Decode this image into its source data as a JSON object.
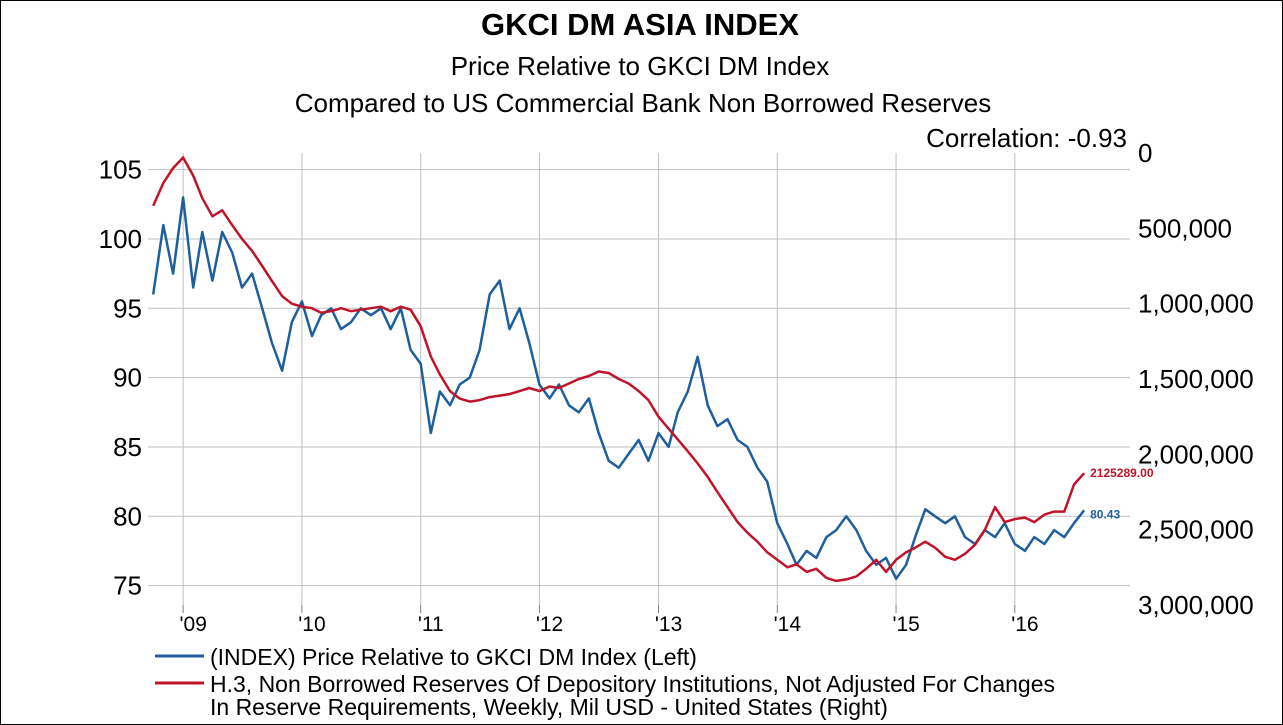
{
  "chart_data": {
    "type": "line",
    "title": "GKCI DM ASIA INDEX",
    "subtitle": "Price Relative to GKCI DM Index",
    "subtitle2": "Compared to US Commercial Bank Non Borrowed Reserves",
    "correlation_text": "Correlation: -0.93",
    "x_ticks": [
      "'09",
      "'10",
      "'11",
      "'12",
      "'13",
      "'14",
      "'15",
      "'16"
    ],
    "y_left_ticks": [
      "105",
      "100",
      "95",
      "90",
      "85",
      "80",
      "75"
    ],
    "y_left_range": [
      73.6,
      106.2
    ],
    "y_right_ticks": [
      "0",
      "500,000",
      "1,000,000",
      "1,500,000",
      "2,000,000",
      "2,500,000",
      "3,000,000"
    ],
    "y_right_range": [
      0,
      3000000
    ],
    "y_right_inverted": true,
    "grid": true,
    "legend_placement": "bottom",
    "series": [
      {
        "name": "(INDEX) Price Relative to GKCI DM Index  (Left)",
        "axis": "left",
        "color": "#1f5f9c",
        "last_label": "80.43",
        "points": [
          [
            "2008-10-01",
            96.0
          ],
          [
            "2008-11-01",
            101.0
          ],
          [
            "2008-12-01",
            97.5
          ],
          [
            "2009-01-01",
            103.0
          ],
          [
            "2009-02-01",
            96.5
          ],
          [
            "2009-03-01",
            100.5
          ],
          [
            "2009-04-01",
            97.0
          ],
          [
            "2009-05-01",
            100.5
          ],
          [
            "2009-06-01",
            99.0
          ],
          [
            "2009-07-01",
            96.5
          ],
          [
            "2009-08-01",
            97.5
          ],
          [
            "2009-09-01",
            95.0
          ],
          [
            "2009-10-01",
            92.5
          ],
          [
            "2009-11-01",
            90.5
          ],
          [
            "2009-12-01",
            94.0
          ],
          [
            "2010-01-01",
            95.5
          ],
          [
            "2010-02-01",
            93.0
          ],
          [
            "2010-03-01",
            94.5
          ],
          [
            "2010-04-01",
            95.0
          ],
          [
            "2010-05-01",
            93.5
          ],
          [
            "2010-06-01",
            94.0
          ],
          [
            "2010-07-01",
            95.0
          ],
          [
            "2010-08-01",
            94.5
          ],
          [
            "2010-09-01",
            95.0
          ],
          [
            "2010-10-01",
            93.5
          ],
          [
            "2010-11-01",
            95.0
          ],
          [
            "2010-12-01",
            92.0
          ],
          [
            "2011-01-01",
            91.0
          ],
          [
            "2011-02-01",
            86.0
          ],
          [
            "2011-03-01",
            89.0
          ],
          [
            "2011-04-01",
            88.0
          ],
          [
            "2011-05-01",
            89.5
          ],
          [
            "2011-06-01",
            90.0
          ],
          [
            "2011-07-01",
            92.0
          ],
          [
            "2011-08-01",
            96.0
          ],
          [
            "2011-09-01",
            97.0
          ],
          [
            "2011-10-01",
            93.5
          ],
          [
            "2011-11-01",
            95.0
          ],
          [
            "2011-12-01",
            92.5
          ],
          [
            "2012-01-01",
            89.5
          ],
          [
            "2012-02-01",
            88.5
          ],
          [
            "2012-03-01",
            89.5
          ],
          [
            "2012-04-01",
            88.0
          ],
          [
            "2012-05-01",
            87.5
          ],
          [
            "2012-06-01",
            88.5
          ],
          [
            "2012-07-01",
            86.0
          ],
          [
            "2012-08-01",
            84.0
          ],
          [
            "2012-09-01",
            83.5
          ],
          [
            "2012-10-01",
            84.5
          ],
          [
            "2012-11-01",
            85.5
          ],
          [
            "2012-12-01",
            84.0
          ],
          [
            "2013-01-01",
            86.0
          ],
          [
            "2013-02-01",
            85.0
          ],
          [
            "2013-03-01",
            87.5
          ],
          [
            "2013-04-01",
            89.0
          ],
          [
            "2013-05-01",
            91.5
          ],
          [
            "2013-06-01",
            88.0
          ],
          [
            "2013-07-01",
            86.5
          ],
          [
            "2013-08-01",
            87.0
          ],
          [
            "2013-09-01",
            85.5
          ],
          [
            "2013-10-01",
            85.0
          ],
          [
            "2013-11-01",
            83.5
          ],
          [
            "2013-12-01",
            82.5
          ],
          [
            "2014-01-01",
            79.5
          ],
          [
            "2014-02-01",
            78.0
          ],
          [
            "2014-03-01",
            76.5
          ],
          [
            "2014-04-01",
            77.5
          ],
          [
            "2014-05-01",
            77.0
          ],
          [
            "2014-06-01",
            78.5
          ],
          [
            "2014-07-01",
            79.0
          ],
          [
            "2014-08-01",
            80.0
          ],
          [
            "2014-09-01",
            79.0
          ],
          [
            "2014-10-01",
            77.5
          ],
          [
            "2014-11-01",
            76.5
          ],
          [
            "2014-12-01",
            77.0
          ],
          [
            "2015-01-01",
            75.5
          ],
          [
            "2015-02-01",
            76.5
          ],
          [
            "2015-03-01",
            78.5
          ],
          [
            "2015-04-01",
            80.5
          ],
          [
            "2015-05-01",
            80.0
          ],
          [
            "2015-06-01",
            79.5
          ],
          [
            "2015-07-01",
            80.0
          ],
          [
            "2015-08-01",
            78.5
          ],
          [
            "2015-09-01",
            78.0
          ],
          [
            "2015-10-01",
            79.0
          ],
          [
            "2015-11-01",
            78.5
          ],
          [
            "2015-12-01",
            79.5
          ],
          [
            "2016-01-01",
            78.0
          ],
          [
            "2016-02-01",
            77.5
          ],
          [
            "2016-03-01",
            78.5
          ],
          [
            "2016-04-01",
            78.0
          ],
          [
            "2016-05-01",
            79.0
          ],
          [
            "2016-06-01",
            78.5
          ],
          [
            "2016-07-01",
            79.5
          ],
          [
            "2016-08-01",
            80.43
          ]
        ]
      },
      {
        "name": "H.3, Non Borrowed Reserves Of Depository Institutions, Not Adjusted For Changes In Reserve Requirements, Weekly, Mil USD - United States  (Right)",
        "name_line1": "H.3, Non Borrowed Reserves Of Depository Institutions, Not Adjusted For Changes",
        "name_line2": "In Reserve Requirements, Weekly, Mil USD - United States  (Right)",
        "axis": "right",
        "color": "#c0142a",
        "last_label": "2125289.00",
        "points": [
          [
            "2008-10-01",
            350000
          ],
          [
            "2008-11-01",
            200000
          ],
          [
            "2008-12-01",
            100000
          ],
          [
            "2009-01-01",
            30000
          ],
          [
            "2009-02-01",
            150000
          ],
          [
            "2009-03-01",
            300000
          ],
          [
            "2009-04-01",
            420000
          ],
          [
            "2009-05-01",
            380000
          ],
          [
            "2009-06-01",
            480000
          ],
          [
            "2009-07-01",
            570000
          ],
          [
            "2009-08-01",
            650000
          ],
          [
            "2009-09-01",
            750000
          ],
          [
            "2009-10-01",
            850000
          ],
          [
            "2009-11-01",
            950000
          ],
          [
            "2009-12-01",
            1000000
          ],
          [
            "2010-01-01",
            1020000
          ],
          [
            "2010-02-01",
            1030000
          ],
          [
            "2010-03-01",
            1060000
          ],
          [
            "2010-04-01",
            1050000
          ],
          [
            "2010-05-01",
            1030000
          ],
          [
            "2010-06-01",
            1050000
          ],
          [
            "2010-07-01",
            1040000
          ],
          [
            "2010-08-01",
            1030000
          ],
          [
            "2010-09-01",
            1020000
          ],
          [
            "2010-10-01",
            1050000
          ],
          [
            "2010-11-01",
            1020000
          ],
          [
            "2010-12-01",
            1040000
          ],
          [
            "2011-01-01",
            1150000
          ],
          [
            "2011-02-01",
            1350000
          ],
          [
            "2011-03-01",
            1470000
          ],
          [
            "2011-04-01",
            1580000
          ],
          [
            "2011-05-01",
            1630000
          ],
          [
            "2011-06-01",
            1650000
          ],
          [
            "2011-07-01",
            1640000
          ],
          [
            "2011-08-01",
            1620000
          ],
          [
            "2011-09-01",
            1610000
          ],
          [
            "2011-10-01",
            1600000
          ],
          [
            "2011-11-01",
            1580000
          ],
          [
            "2011-12-01",
            1560000
          ],
          [
            "2012-01-01",
            1580000
          ],
          [
            "2012-02-01",
            1550000
          ],
          [
            "2012-03-01",
            1560000
          ],
          [
            "2012-04-01",
            1530000
          ],
          [
            "2012-05-01",
            1500000
          ],
          [
            "2012-06-01",
            1480000
          ],
          [
            "2012-07-01",
            1450000
          ],
          [
            "2012-08-01",
            1460000
          ],
          [
            "2012-09-01",
            1500000
          ],
          [
            "2012-10-01",
            1530000
          ],
          [
            "2012-11-01",
            1580000
          ],
          [
            "2012-12-01",
            1640000
          ],
          [
            "2013-01-01",
            1750000
          ],
          [
            "2013-02-01",
            1830000
          ],
          [
            "2013-03-01",
            1900000
          ],
          [
            "2013-04-01",
            1980000
          ],
          [
            "2013-05-01",
            2060000
          ],
          [
            "2013-06-01",
            2150000
          ],
          [
            "2013-07-01",
            2250000
          ],
          [
            "2013-08-01",
            2350000
          ],
          [
            "2013-09-01",
            2450000
          ],
          [
            "2013-10-01",
            2520000
          ],
          [
            "2013-11-01",
            2580000
          ],
          [
            "2013-12-01",
            2650000
          ],
          [
            "2014-01-01",
            2700000
          ],
          [
            "2014-02-01",
            2750000
          ],
          [
            "2014-03-01",
            2730000
          ],
          [
            "2014-04-01",
            2780000
          ],
          [
            "2014-05-01",
            2760000
          ],
          [
            "2014-06-01",
            2820000
          ],
          [
            "2014-07-01",
            2840000
          ],
          [
            "2014-08-01",
            2830000
          ],
          [
            "2014-09-01",
            2810000
          ],
          [
            "2014-10-01",
            2760000
          ],
          [
            "2014-11-01",
            2700000
          ],
          [
            "2014-12-01",
            2780000
          ],
          [
            "2015-01-01",
            2700000
          ],
          [
            "2015-02-01",
            2650000
          ],
          [
            "2015-03-01",
            2620000
          ],
          [
            "2015-04-01",
            2580000
          ],
          [
            "2015-05-01",
            2620000
          ],
          [
            "2015-06-01",
            2680000
          ],
          [
            "2015-07-01",
            2700000
          ],
          [
            "2015-08-01",
            2660000
          ],
          [
            "2015-09-01",
            2600000
          ],
          [
            "2015-10-01",
            2500000
          ],
          [
            "2015-11-01",
            2350000
          ],
          [
            "2015-12-01",
            2450000
          ],
          [
            "2016-01-01",
            2430000
          ],
          [
            "2016-02-01",
            2420000
          ],
          [
            "2016-03-01",
            2450000
          ],
          [
            "2016-04-01",
            2400000
          ],
          [
            "2016-05-01",
            2380000
          ],
          [
            "2016-06-01",
            2380000
          ],
          [
            "2016-07-01",
            2200000
          ],
          [
            "2016-08-01",
            2125289
          ]
        ]
      }
    ]
  }
}
